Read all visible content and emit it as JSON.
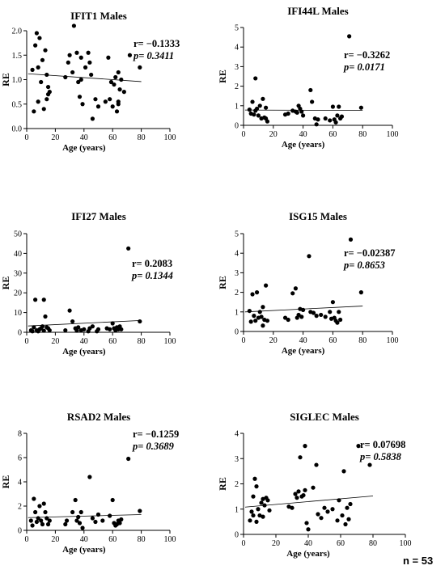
{
  "footer": {
    "n_label": "n = 53"
  },
  "chart_data": [
    {
      "type": "scatter",
      "title": "IFIT1 Males",
      "xlabel": "Age (years)",
      "ylabel": "RE",
      "xlim": [
        0,
        100
      ],
      "ylim": [
        0,
        2
      ],
      "xticks": [
        "0",
        "20",
        "40",
        "60",
        "80",
        "100"
      ],
      "yticks": [
        "0.0",
        "0.5",
        "1.0",
        "1.5",
        "2.0"
      ],
      "r_label": "r= −0.1333",
      "p_label": "p= 0.3411",
      "regression": {
        "x": [
          1,
          80
        ],
        "y": [
          1.12,
          0.96
        ]
      },
      "points": [
        [
          4,
          1.2
        ],
        [
          5,
          0.35
        ],
        [
          6,
          1.7
        ],
        [
          7,
          1.95
        ],
        [
          8,
          1.25
        ],
        [
          8,
          0.55
        ],
        [
          9,
          1.85
        ],
        [
          10,
          0.95
        ],
        [
          11,
          1.4
        ],
        [
          12,
          0.4
        ],
        [
          13,
          1.6
        ],
        [
          14,
          1.1
        ],
        [
          14,
          0.6
        ],
        [
          15,
          0.85
        ],
        [
          15,
          0.7
        ],
        [
          16,
          0.75
        ],
        [
          27,
          1.05
        ],
        [
          29,
          1.35
        ],
        [
          30,
          1.5
        ],
        [
          32,
          1.15
        ],
        [
          33,
          2.1
        ],
        [
          35,
          1.55
        ],
        [
          36,
          0.95
        ],
        [
          37,
          0.65
        ],
        [
          38,
          1.45
        ],
        [
          38,
          1.0
        ],
        [
          39,
          0.5
        ],
        [
          41,
          1.25
        ],
        [
          43,
          1.55
        ],
        [
          44,
          1.35
        ],
        [
          45,
          1.1
        ],
        [
          46,
          0.2
        ],
        [
          48,
          0.6
        ],
        [
          50,
          0.45
        ],
        [
          55,
          0.55
        ],
        [
          57,
          1.45
        ],
        [
          58,
          0.6
        ],
        [
          59,
          0.95
        ],
        [
          60,
          0.45
        ],
        [
          61,
          0.9
        ],
        [
          62,
          1.05
        ],
        [
          63,
          0.35
        ],
        [
          64,
          1.15
        ],
        [
          64,
          0.55
        ],
        [
          64,
          0.5
        ],
        [
          65,
          0.8
        ],
        [
          66,
          1.0
        ],
        [
          68,
          0.75
        ],
        [
          72,
          1.5
        ],
        [
          79,
          1.25
        ]
      ]
    },
    {
      "type": "scatter",
      "title": "IFI44L Males",
      "xlabel": "Age (years)",
      "ylabel": "RE",
      "xlim": [
        0,
        100
      ],
      "ylim": [
        0,
        5
      ],
      "xticks": [
        "0",
        "20",
        "40",
        "60",
        "80",
        "100"
      ],
      "yticks": [
        "0",
        "1",
        "2",
        "3",
        "4",
        "5"
      ],
      "r_label": "r= −0.3262",
      "p_label": "p= 0.0171",
      "regression": {
        "x": [
          1,
          80
        ],
        "y": [
          0.78,
          0.76
        ]
      },
      "points": [
        [
          4,
          0.8
        ],
        [
          5,
          0.6
        ],
        [
          6,
          1.2
        ],
        [
          7,
          0.55
        ],
        [
          8,
          2.4
        ],
        [
          8,
          0.75
        ],
        [
          9,
          0.85
        ],
        [
          10,
          0.5
        ],
        [
          11,
          1.0
        ],
        [
          12,
          0.35
        ],
        [
          13,
          1.35
        ],
        [
          14,
          0.4
        ],
        [
          15,
          0.9
        ],
        [
          15,
          0.35
        ],
        [
          16,
          0.2
        ],
        [
          28,
          0.55
        ],
        [
          30,
          0.6
        ],
        [
          33,
          0.75
        ],
        [
          35,
          0.7
        ],
        [
          36,
          0.65
        ],
        [
          37,
          1.0
        ],
        [
          38,
          0.85
        ],
        [
          39,
          0.7
        ],
        [
          40,
          0.5
        ],
        [
          45,
          1.8
        ],
        [
          46,
          1.2
        ],
        [
          48,
          0.35
        ],
        [
          49,
          0.05
        ],
        [
          50,
          0.3
        ],
        [
          55,
          0.35
        ],
        [
          58,
          0.25
        ],
        [
          60,
          0.95
        ],
        [
          61,
          0.3
        ],
        [
          62,
          0.15
        ],
        [
          63,
          0.5
        ],
        [
          64,
          0.95
        ],
        [
          65,
          0.35
        ],
        [
          66,
          0.45
        ],
        [
          71,
          4.55
        ],
        [
          79,
          0.9
        ]
      ]
    },
    {
      "type": "scatter",
      "title": "IFI27 Males",
      "xlabel": "Age (years)",
      "ylabel": "RE",
      "xlim": [
        0,
        100
      ],
      "ylim": [
        0,
        50
      ],
      "xticks": [
        "0",
        "20",
        "40",
        "60",
        "80",
        "100"
      ],
      "yticks": [
        "0",
        "10",
        "20",
        "30",
        "40",
        "50"
      ],
      "r_label": "r= 0.2083",
      "p_label": "p= 0.1344",
      "regression": {
        "x": [
          1,
          80
        ],
        "y": [
          3.2,
          6.0
        ]
      },
      "points": [
        [
          3,
          1.0
        ],
        [
          4,
          0.5
        ],
        [
          5,
          2.5
        ],
        [
          6,
          16.5
        ],
        [
          7,
          1.0
        ],
        [
          8,
          0.5
        ],
        [
          9,
          1.5
        ],
        [
          10,
          2.0
        ],
        [
          11,
          3.0
        ],
        [
          12,
          16.5
        ],
        [
          12,
          0.8
        ],
        [
          13,
          8.0
        ],
        [
          14,
          2.5
        ],
        [
          15,
          2.0
        ],
        [
          16,
          1.0
        ],
        [
          27,
          1.0
        ],
        [
          30,
          11.0
        ],
        [
          32,
          5.5
        ],
        [
          34,
          2.0
        ],
        [
          35,
          0.8
        ],
        [
          36,
          2.5
        ],
        [
          38,
          1.0
        ],
        [
          40,
          1.5
        ],
        [
          43,
          0.5
        ],
        [
          44,
          2.0
        ],
        [
          46,
          3.0
        ],
        [
          49,
          0.5
        ],
        [
          50,
          1.5
        ],
        [
          56,
          2.0
        ],
        [
          58,
          1.5
        ],
        [
          60,
          4.5
        ],
        [
          61,
          2.0
        ],
        [
          62,
          1.0
        ],
        [
          63,
          2.5
        ],
        [
          64,
          1.5
        ],
        [
          65,
          3.0
        ],
        [
          66,
          1.5
        ],
        [
          71,
          42.5
        ],
        [
          79,
          5.5
        ]
      ]
    },
    {
      "type": "scatter",
      "title": "ISG15 Males",
      "xlabel": "Age (years)",
      "ylabel": "RE",
      "xlim": [
        0,
        100
      ],
      "ylim": [
        0,
        5
      ],
      "xticks": [
        "0",
        "20",
        "40",
        "60",
        "80",
        "100"
      ],
      "yticks": [
        "0",
        "1",
        "2",
        "3",
        "4",
        "5"
      ],
      "r_label": "r= −0.02387",
      "p_label": "p= 0.8653",
      "regression": {
        "x": [
          1,
          80
        ],
        "y": [
          1.0,
          1.3
        ]
      },
      "points": [
        [
          4,
          1.05
        ],
        [
          5,
          0.5
        ],
        [
          6,
          1.9
        ],
        [
          7,
          0.8
        ],
        [
          8,
          0.55
        ],
        [
          9,
          2.0
        ],
        [
          10,
          0.7
        ],
        [
          11,
          1.0
        ],
        [
          12,
          0.75
        ],
        [
          13,
          0.3
        ],
        [
          13,
          1.25
        ],
        [
          14,
          0.6
        ],
        [
          15,
          2.35
        ],
        [
          16,
          0.55
        ],
        [
          28,
          0.7
        ],
        [
          30,
          0.6
        ],
        [
          33,
          1.95
        ],
        [
          35,
          2.2
        ],
        [
          36,
          0.7
        ],
        [
          37,
          0.85
        ],
        [
          38,
          1.15
        ],
        [
          39,
          0.75
        ],
        [
          40,
          1.1
        ],
        [
          44,
          3.85
        ],
        [
          45,
          1.0
        ],
        [
          47,
          0.95
        ],
        [
          49,
          0.8
        ],
        [
          52,
          0.85
        ],
        [
          55,
          0.75
        ],
        [
          58,
          1.0
        ],
        [
          59,
          0.65
        ],
        [
          60,
          1.5
        ],
        [
          61,
          0.7
        ],
        [
          62,
          0.55
        ],
        [
          63,
          0.45
        ],
        [
          64,
          1.0
        ],
        [
          65,
          0.6
        ],
        [
          72,
          4.7
        ],
        [
          79,
          2.0
        ]
      ]
    },
    {
      "type": "scatter",
      "title": "RSAD2 Males",
      "xlabel": "Age (years)",
      "ylabel": "RE",
      "xlim": [
        0,
        100
      ],
      "ylim": [
        0,
        8
      ],
      "xticks": [
        "0",
        "20",
        "40",
        "60",
        "80",
        "100"
      ],
      "yticks": [
        "0",
        "2",
        "4",
        "6",
        "8"
      ],
      "r_label": "r= −0.1259",
      "p_label": "p= 0.3689",
      "regression": {
        "x": [
          1,
          80
        ],
        "y": [
          1.05,
          1.3
        ]
      },
      "points": [
        [
          3,
          0.8
        ],
        [
          4,
          0.4
        ],
        [
          5,
          2.6
        ],
        [
          6,
          1.5
        ],
        [
          7,
          0.7
        ],
        [
          8,
          1.0
        ],
        [
          9,
          2.0
        ],
        [
          10,
          0.8
        ],
        [
          11,
          0.5
        ],
        [
          12,
          2.2
        ],
        [
          13,
          1.5
        ],
        [
          14,
          1.0
        ],
        [
          15,
          0.5
        ],
        [
          16,
          0.8
        ],
        [
          27,
          0.5
        ],
        [
          28,
          0.8
        ],
        [
          32,
          1.5
        ],
        [
          34,
          2.5
        ],
        [
          35,
          0.8
        ],
        [
          36,
          1.1
        ],
        [
          37,
          0.6
        ],
        [
          38,
          1.5
        ],
        [
          39,
          0.2
        ],
        [
          44,
          4.4
        ],
        [
          46,
          1.0
        ],
        [
          48,
          0.7
        ],
        [
          50,
          1.3
        ],
        [
          53,
          0.8
        ],
        [
          58,
          1.2
        ],
        [
          60,
          2.5
        ],
        [
          61,
          0.6
        ],
        [
          62,
          0.4
        ],
        [
          63,
          0.5
        ],
        [
          64,
          0.8
        ],
        [
          65,
          0.6
        ],
        [
          66,
          0.9
        ],
        [
          71,
          5.9
        ],
        [
          79,
          1.6
        ]
      ]
    },
    {
      "type": "scatter",
      "title": "SIGLEC Males",
      "xlabel": "Age (years)",
      "ylabel": "RE",
      "xlim": [
        0,
        100
      ],
      "ylim": [
        0,
        4
      ],
      "xticks": [
        "0",
        "20",
        "40",
        "60",
        "80",
        "100"
      ],
      "yticks": [
        "0",
        "1",
        "2",
        "3",
        "4"
      ],
      "r_label": "r= 0.07698",
      "p_label": "p= 0.5838",
      "regression": {
        "x": [
          1,
          80
        ],
        "y": [
          1.08,
          1.52
        ]
      },
      "points": [
        [
          4,
          0.55
        ],
        [
          5,
          0.9
        ],
        [
          6,
          0.75
        ],
        [
          6,
          1.5
        ],
        [
          7,
          2.2
        ],
        [
          8,
          0.5
        ],
        [
          8,
          1.9
        ],
        [
          9,
          1.0
        ],
        [
          10,
          0.75
        ],
        [
          11,
          1.25
        ],
        [
          12,
          1.4
        ],
        [
          12,
          0.7
        ],
        [
          13,
          1.15
        ],
        [
          14,
          1.45
        ],
        [
          15,
          1.35
        ],
        [
          16,
          0.95
        ],
        [
          28,
          1.1
        ],
        [
          30,
          1.05
        ],
        [
          32,
          1.6
        ],
        [
          33,
          1.45
        ],
        [
          34,
          1.7
        ],
        [
          35,
          3.05
        ],
        [
          36,
          1.5
        ],
        [
          37,
          1.55
        ],
        [
          38,
          3.5
        ],
        [
          38,
          1.75
        ],
        [
          39,
          0.45
        ],
        [
          40,
          0.2
        ],
        [
          43,
          1.85
        ],
        [
          45,
          2.75
        ],
        [
          46,
          0.8
        ],
        [
          48,
          0.65
        ],
        [
          50,
          1.05
        ],
        [
          52,
          0.9
        ],
        [
          55,
          1.0
        ],
        [
          58,
          0.55
        ],
        [
          59,
          1.35
        ],
        [
          61,
          0.75
        ],
        [
          62,
          2.5
        ],
        [
          63,
          0.4
        ],
        [
          64,
          1.05
        ],
        [
          65,
          0.6
        ],
        [
          66,
          1.2
        ],
        [
          71,
          3.5
        ],
        [
          78,
          2.75
        ]
      ]
    }
  ]
}
